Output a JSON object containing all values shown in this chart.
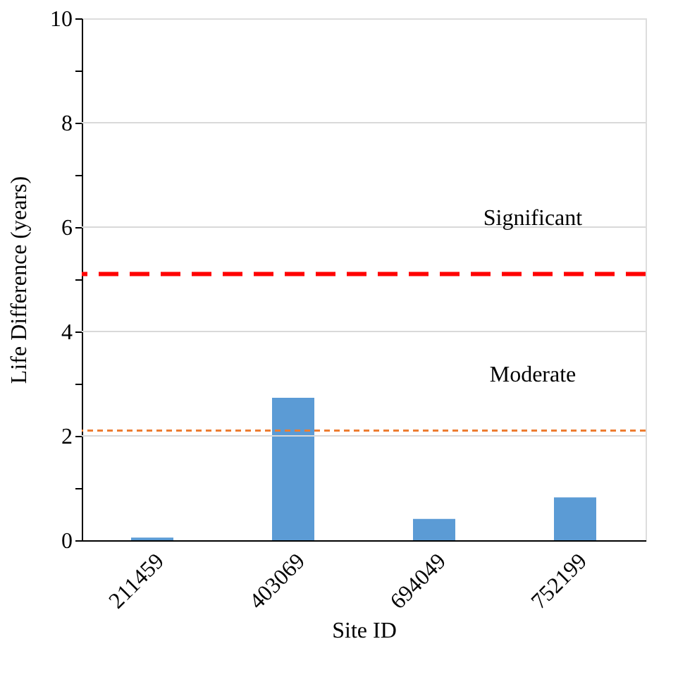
{
  "chart_data": {
    "type": "bar",
    "xlabel": "Site ID",
    "ylabel": "Life  Difference  (years)",
    "categories": [
      "211459",
      "403069",
      "694049",
      "752199"
    ],
    "values": [
      0.05,
      2.73,
      0.41,
      0.82
    ],
    "color": "#5b9bd5",
    "ylim": [
      0,
      10
    ],
    "yticks": [
      0,
      {
        "value": 1,
        "label": null
      },
      2,
      {
        "value": 3,
        "label": null
      },
      4,
      {
        "value": 5,
        "label": null
      },
      6,
      {
        "value": 7,
        "label": null
      },
      8,
      {
        "value": 9,
        "label": null
      },
      10
    ],
    "grid": "y",
    "ref_lines": [
      {
        "axis": "y",
        "value": 5.1,
        "label": "Significant",
        "color": "#ff0000",
        "line_style": "dashed"
      },
      {
        "axis": "y",
        "value": 2.1,
        "label": "Moderate",
        "color": "#ed7d31",
        "line_style": "dotted"
      }
    ]
  }
}
